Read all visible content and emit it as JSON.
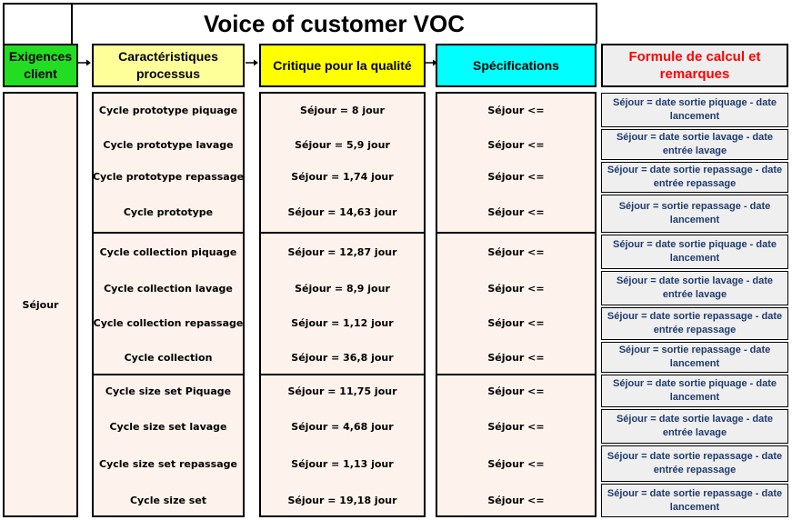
{
  "title": "Voice of customer VOC",
  "headers": {
    "exigences": "Exigences client",
    "caracteristiques": "Caractéristiques processus",
    "critique": "Critique pour la qualité",
    "specifications": "Spécifications",
    "formule": "Formule de calcul et remarques"
  },
  "exigence_client": "Séjour",
  "rows": [
    {
      "carac": "Cycle  prototype piquage",
      "critique": "Séjour  =  8 jour",
      "spec": "Séjour <=",
      "formule": "Séjour = date sortie piquage - date lancement"
    },
    {
      "carac": "Cycle prototype lavage",
      "critique": "Séjour  = 5,9 jour",
      "spec": "Séjour <=",
      "formule": "Séjour  = date sortie lavage - date entrée lavage"
    },
    {
      "carac": "Cycle prototype repassage",
      "critique": "Séjour  = 1,74  jour",
      "spec": "Séjour <=",
      "formule": "Séjour = date sortie repassage - date entrée repassage"
    },
    {
      "carac": "Cycle prototype",
      "critique": "Séjour  = 14,63 jour",
      "spec": "Séjour <=",
      "formule": "Séjour  = sortie repassage - date lancement"
    },
    {
      "carac": "Cycle  collection piquage",
      "critique": "Séjour  =  12,87 jour",
      "spec": "Séjour <=",
      "formule": "Séjour  = date sortie piquage - date lancement"
    },
    {
      "carac": "Cycle collection lavage",
      "critique": "Séjour  = 8,9 jour",
      "spec": "Séjour <=",
      "formule": "Séjour = date sortie lavage - date entrée lavage"
    },
    {
      "carac": "Cycle collection repassage",
      "critique": "Séjour  = 1,12  jour",
      "spec": "Séjour <=",
      "formule": "Séjour = date sortie repassage - date entrée repassage"
    },
    {
      "carac": "Cycle collection",
      "critique": "Séjour  = 36,8 jour",
      "spec": "Séjour <=",
      "formule": "Séjour  = sortie repassage - date lancement"
    },
    {
      "carac": "Cycle size set  Piquage",
      "critique": "Séjour  = 11,75 jour",
      "spec": "Séjour <=",
      "formule": "Séjour = date sortie piquage  - date lancement"
    },
    {
      "carac": "Cycle size set  lavage",
      "critique": "Séjour  = 4,68 jour",
      "spec": "Séjour <=",
      "formule": "Séjour = date sortie lavage - date entrée lavage"
    },
    {
      "carac": "Cycle size set  repassage",
      "critique": "Séjour  =  1,13 jour",
      "spec": "Séjour <=",
      "formule": "Séjour  = date sortie repassage - date entrée repassage"
    },
    {
      "carac": "Cycle size set",
      "critique": "Séjour  =  19,18 jour",
      "spec": "Séjour <=",
      "formule": "Séjour  = date sortie repassage - date lancement"
    }
  ],
  "colors": {
    "exigences": "#22dd22",
    "caracteristiques": "#ffff99",
    "critique": "#ffff00",
    "specifications": "#00ffff",
    "formule_title": "#ff0000",
    "formule_text": "#1f3b6e"
  }
}
